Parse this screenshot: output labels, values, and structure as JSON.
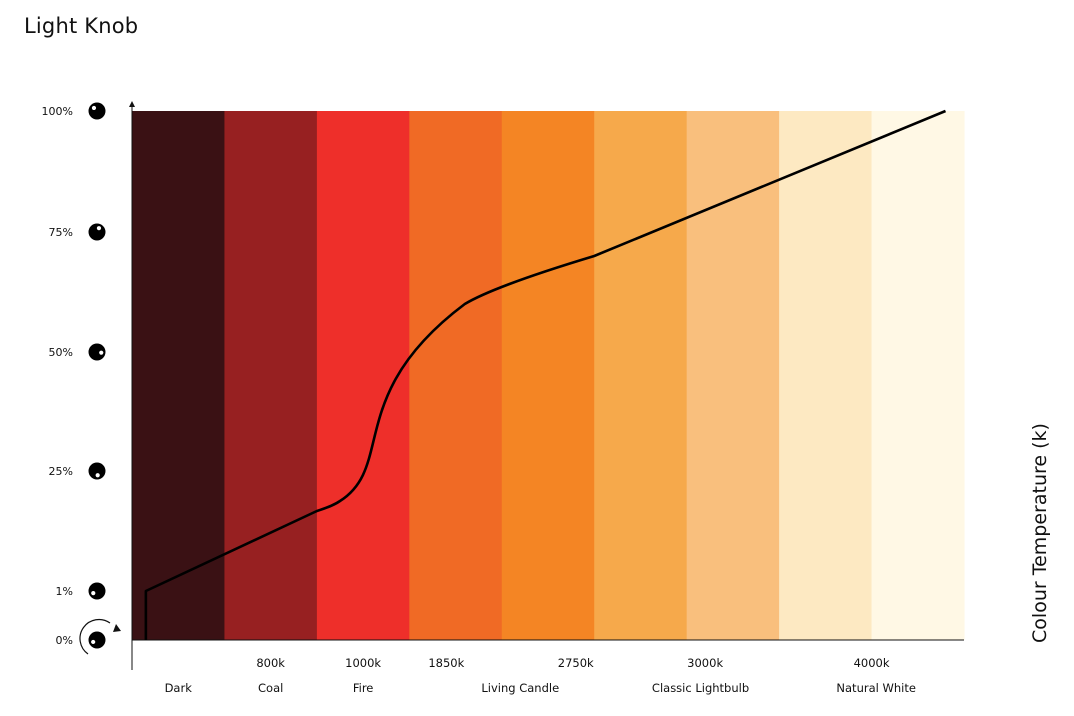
{
  "title": "Light Knob",
  "side_label": "Colour Temperature (k)",
  "chart_data": {
    "type": "line",
    "y_ticks": [
      "100%",
      "75%",
      "50%",
      "25%",
      "1%",
      "0%"
    ],
    "y_tick_values": [
      100,
      75,
      50,
      25,
      1,
      0
    ],
    "bands": [
      {
        "name": "Dark",
        "color": "#3a1114"
      },
      {
        "name": "Coal",
        "color": "#972021"
      },
      {
        "name": "Fire",
        "color": "#ee2f2a"
      },
      {
        "name": "",
        "color": "#f06a25"
      },
      {
        "name": "Living Candle",
        "color": "#f48524"
      },
      {
        "name": "",
        "color": "#f6a94b"
      },
      {
        "name": "Classic Lightbulb",
        "color": "#f9bf7d"
      },
      {
        "name": "",
        "color": "#fde9c2"
      },
      {
        "name": "Natural White",
        "color": "#fff8e5"
      }
    ],
    "kelvin_labels": [
      {
        "label": "800k",
        "band_position": 1.5
      },
      {
        "label": "1000k",
        "band_position": 2.5
      },
      {
        "label": "1850k",
        "band_position": 3.4
      },
      {
        "label": "2750k",
        "band_position": 4.8
      },
      {
        "label": "3000k",
        "band_position": 6.2
      },
      {
        "label": "4000k",
        "band_position": 8.0
      }
    ],
    "band_label_positions": [
      0.5,
      1.5,
      2.5,
      4.2,
      6.15,
      8.05
    ],
    "curve": [
      {
        "x": 0.15,
        "y": 0
      },
      {
        "x": 0.15,
        "y": 1
      },
      {
        "x": 2.0,
        "y": 17
      },
      {
        "x": 2.25,
        "y": 19
      },
      {
        "x": 3.6,
        "y": 60
      },
      {
        "x": 5.0,
        "y": 70
      },
      {
        "x": 8.8,
        "y": 100
      }
    ],
    "xlabel": "",
    "ylabel": ""
  }
}
